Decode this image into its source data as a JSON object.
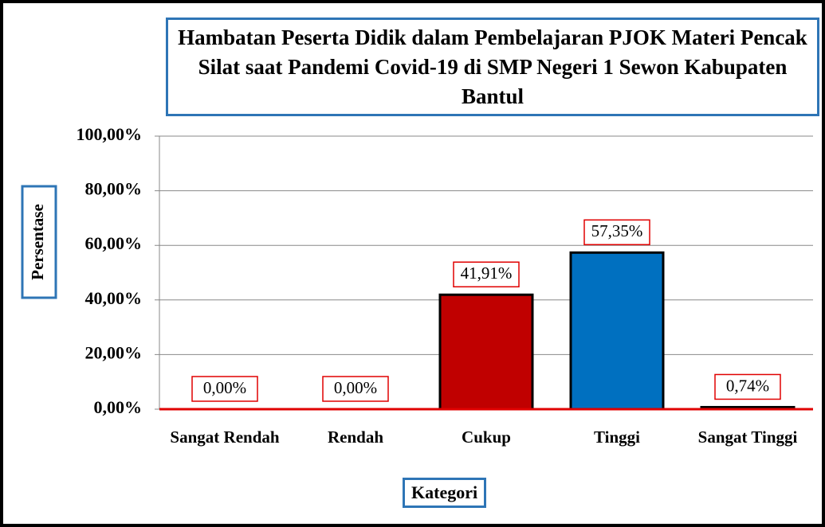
{
  "chart_data": {
    "type": "bar",
    "title": "Hambatan Peserta Didik dalam Pembelajaran PJOK Materi Pencak Silat saat Pandemi Covid-19 di SMP Negeri 1 Sewon Kabupaten Bantul",
    "x_label": "Kategori",
    "y_label": "Persentase",
    "categories": [
      "Sangat Rendah",
      "Rendah",
      "Cukup",
      "Tinggi",
      "Sangat Tinggi"
    ],
    "values": [
      0,
      0,
      41.91,
      57.35,
      0.74
    ],
    "value_labels": [
      "0,00%",
      "0,00%",
      "41,91%",
      "57,35%",
      "0,74%"
    ],
    "colors": [
      "#c00000",
      "#c00000",
      "#c00000",
      "#0070c0",
      "#c00000"
    ],
    "ylim": [
      0,
      100
    ],
    "yticks": [
      {
        "value": 0,
        "label": "0,00%"
      },
      {
        "value": 20,
        "label": "20,00%"
      },
      {
        "value": 40,
        "label": "40,00%"
      },
      {
        "value": 60,
        "label": "60,00%"
      },
      {
        "value": 80,
        "label": "80,00%"
      },
      {
        "value": 100,
        "label": "100,00%"
      }
    ],
    "grid": true
  }
}
